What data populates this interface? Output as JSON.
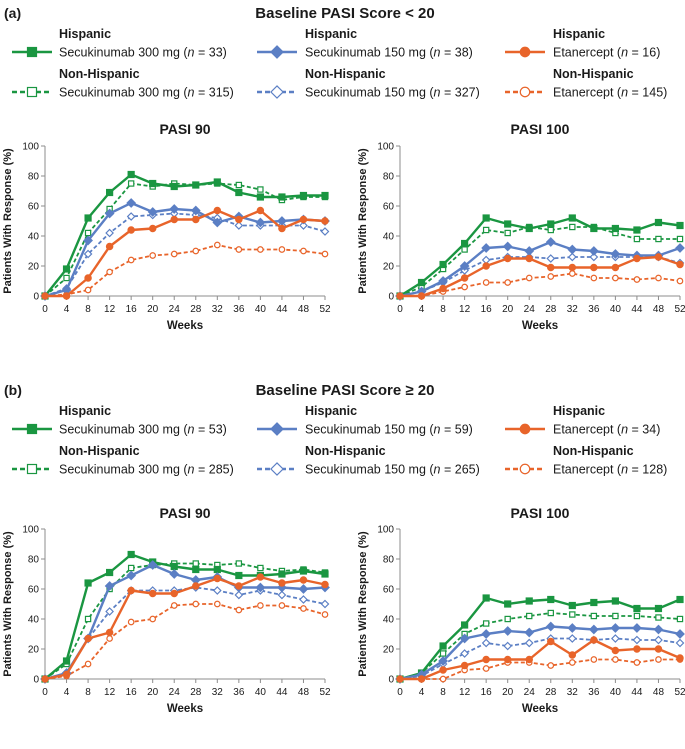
{
  "colors": {
    "secukinumab_300": "#1a9641",
    "secukinumab_150": "#5b7fc4",
    "etanercept": "#e8642a",
    "axis": "#8c8c8c",
    "text": "#1a1a1a"
  },
  "panels": [
    {
      "label": "(a)",
      "title": "Baseline PASI Score < 20",
      "legend": [
        {
          "group": "Hispanic",
          "drug": "Secukinumab 300 mg",
          "n": "33",
          "series": "secukinumab_300",
          "style": "solid",
          "marker": "square"
        },
        {
          "group": "Hispanic",
          "drug": "Secukinumab 150 mg",
          "n": "38",
          "series": "secukinumab_150",
          "style": "solid",
          "marker": "diamond"
        },
        {
          "group": "Hispanic",
          "drug": "Etanercept",
          "n": "16",
          "series": "etanercept",
          "style": "solid",
          "marker": "circle"
        },
        {
          "group": "Non-Hispanic",
          "drug": "Secukinumab 300 mg",
          "n": "315",
          "series": "secukinumab_300",
          "style": "dashed",
          "marker": "square"
        },
        {
          "group": "Non-Hispanic",
          "drug": "Secukinumab 150 mg",
          "n": "327",
          "series": "secukinumab_150",
          "style": "dashed",
          "marker": "diamond"
        },
        {
          "group": "Non-Hispanic",
          "drug": "Etanercept",
          "n": "145",
          "series": "etanercept",
          "style": "dashed",
          "marker": "circle"
        }
      ]
    },
    {
      "label": "(b)",
      "title": "Baseline PASI Score ≥ 20",
      "legend": [
        {
          "group": "Hispanic",
          "drug": "Secukinumab 300 mg",
          "n": "53",
          "series": "secukinumab_300",
          "style": "solid",
          "marker": "square"
        },
        {
          "group": "Hispanic",
          "drug": "Secukinumab 150 mg",
          "n": "59",
          "series": "secukinumab_150",
          "style": "solid",
          "marker": "diamond"
        },
        {
          "group": "Hispanic",
          "drug": "Etanercept",
          "n": "34",
          "series": "etanercept",
          "style": "solid",
          "marker": "circle"
        },
        {
          "group": "Non-Hispanic",
          "drug": "Secukinumab 300 mg",
          "n": "285",
          "series": "secukinumab_300",
          "style": "dashed",
          "marker": "square"
        },
        {
          "group": "Non-Hispanic",
          "drug": "Secukinumab 150 mg",
          "n": "265",
          "series": "secukinumab_150",
          "style": "dashed",
          "marker": "diamond"
        },
        {
          "group": "Non-Hispanic",
          "drug": "Etanercept",
          "n": "128",
          "series": "etanercept",
          "style": "dashed",
          "marker": "circle"
        }
      ]
    }
  ],
  "chart_data": [
    {
      "id": "a-pasi90",
      "type": "line",
      "title": "PASI 90",
      "xlabel": "Weeks",
      "ylabel": "Patients With Response (%)",
      "x": [
        0,
        4,
        8,
        12,
        16,
        20,
        24,
        28,
        32,
        36,
        40,
        44,
        48,
        52
      ],
      "ylim": [
        0,
        100
      ],
      "yticks": [
        0,
        20,
        40,
        60,
        80,
        100
      ],
      "series": [
        {
          "name": "Hispanic Secukinumab 300 mg",
          "key": "secukinumab_300",
          "style": "solid",
          "marker": "square",
          "values": [
            0,
            18,
            52,
            69,
            81,
            75,
            73,
            74,
            76,
            69,
            66,
            66,
            67,
            67
          ]
        },
        {
          "name": "Non-Hispanic Secukinumab 300 mg",
          "key": "secukinumab_300",
          "style": "dashed",
          "marker": "square",
          "values": [
            0,
            12,
            42,
            58,
            75,
            73,
            75,
            74,
            75,
            74,
            71,
            64,
            66,
            66
          ]
        },
        {
          "name": "Hispanic Secukinumab 150 mg",
          "key": "secukinumab_150",
          "style": "solid",
          "marker": "diamond",
          "values": [
            0,
            4,
            37,
            55,
            62,
            56,
            58,
            57,
            49,
            53,
            49,
            50,
            51,
            50
          ]
        },
        {
          "name": "Non-Hispanic Secukinumab 150 mg",
          "key": "secukinumab_150",
          "style": "dashed",
          "marker": "diamond",
          "values": [
            0,
            5,
            28,
            42,
            53,
            54,
            55,
            54,
            52,
            47,
            47,
            47,
            47,
            43
          ]
        },
        {
          "name": "Hispanic Etanercept",
          "key": "etanercept",
          "style": "solid",
          "marker": "circle",
          "values": [
            0,
            0,
            12,
            33,
            44,
            45,
            51,
            51,
            57,
            51,
            57,
            45,
            51,
            50
          ]
        },
        {
          "name": "Non-Hispanic Etanercept",
          "key": "etanercept",
          "style": "dashed",
          "marker": "circle",
          "values": [
            0,
            1,
            4,
            16,
            24,
            27,
            28,
            30,
            34,
            31,
            31,
            31,
            30,
            28
          ]
        }
      ]
    },
    {
      "id": "a-pasi100",
      "type": "line",
      "title": "PASI 100",
      "xlabel": "Weeks",
      "ylabel": "Patients With Response (%)",
      "x": [
        0,
        4,
        8,
        12,
        16,
        20,
        24,
        28,
        32,
        36,
        40,
        44,
        48,
        52
      ],
      "ylim": [
        0,
        100
      ],
      "yticks": [
        0,
        20,
        40,
        60,
        80,
        100
      ],
      "series": [
        {
          "name": "Hispanic Secukinumab 300 mg",
          "key": "secukinumab_300",
          "style": "solid",
          "marker": "square",
          "values": [
            0,
            9,
            21,
            35,
            52,
            48,
            45,
            48,
            52,
            45,
            45,
            44,
            49,
            47
          ]
        },
        {
          "name": "Non-Hispanic Secukinumab 300 mg",
          "key": "secukinumab_300",
          "style": "dashed",
          "marker": "square",
          "values": [
            0,
            6,
            18,
            31,
            44,
            42,
            46,
            44,
            46,
            46,
            42,
            38,
            38,
            38
          ]
        },
        {
          "name": "Hispanic Secukinumab 150 mg",
          "key": "secukinumab_150",
          "style": "solid",
          "marker": "diamond",
          "values": [
            0,
            3,
            10,
            20,
            32,
            33,
            30,
            36,
            31,
            30,
            28,
            27,
            27,
            32
          ]
        },
        {
          "name": "Non-Hispanic Secukinumab 150 mg",
          "key": "secukinumab_150",
          "style": "dashed",
          "marker": "diamond",
          "values": [
            0,
            3,
            9,
            17,
            24,
            26,
            26,
            25,
            26,
            26,
            26,
            26,
            26,
            22
          ]
        },
        {
          "name": "Hispanic Etanercept",
          "key": "etanercept",
          "style": "solid",
          "marker": "circle",
          "values": [
            0,
            0,
            5,
            12,
            20,
            25,
            25,
            19,
            19,
            19,
            19,
            25,
            26,
            21
          ]
        },
        {
          "name": "Non-Hispanic Etanercept",
          "key": "etanercept",
          "style": "dashed",
          "marker": "circle",
          "values": [
            0,
            0,
            3,
            6,
            9,
            9,
            12,
            13,
            15,
            12,
            12,
            11,
            12,
            10
          ]
        }
      ]
    },
    {
      "id": "b-pasi90",
      "type": "line",
      "title": "PASI 90",
      "xlabel": "Weeks",
      "ylabel": "Patients With Response (%)",
      "x": [
        0,
        4,
        8,
        12,
        16,
        20,
        24,
        28,
        32,
        36,
        40,
        44,
        48,
        52
      ],
      "ylim": [
        0,
        100
      ],
      "yticks": [
        0,
        20,
        40,
        60,
        80,
        100
      ],
      "series": [
        {
          "name": "Hispanic Secukinumab 300 mg",
          "key": "secukinumab_300",
          "style": "solid",
          "marker": "square",
          "values": [
            0,
            12,
            64,
            71,
            83,
            78,
            75,
            73,
            73,
            69,
            69,
            70,
            72,
            70
          ]
        },
        {
          "name": "Non-Hispanic Secukinumab 300 mg",
          "key": "secukinumab_300",
          "style": "dashed",
          "marker": "square",
          "values": [
            0,
            10,
            40,
            60,
            74,
            76,
            77,
            77,
            76,
            77,
            74,
            72,
            73,
            71
          ]
        },
        {
          "name": "Hispanic Secukinumab 150 mg",
          "key": "secukinumab_150",
          "style": "solid",
          "marker": "diamond",
          "values": [
            0,
            4,
            27,
            62,
            69,
            76,
            70,
            66,
            68,
            61,
            61,
            61,
            60,
            61
          ]
        },
        {
          "name": "Non-Hispanic Secukinumab 150 mg",
          "key": "secukinumab_150",
          "style": "dashed",
          "marker": "diamond",
          "values": [
            0,
            3,
            27,
            45,
            59,
            59,
            59,
            61,
            59,
            56,
            59,
            56,
            53,
            50
          ]
        },
        {
          "name": "Hispanic Etanercept",
          "key": "etanercept",
          "style": "solid",
          "marker": "circle",
          "values": [
            0,
            3,
            27,
            31,
            59,
            57,
            57,
            62,
            67,
            62,
            68,
            64,
            66,
            63
          ]
        },
        {
          "name": "Non-Hispanic Etanercept",
          "key": "etanercept",
          "style": "dashed",
          "marker": "circle",
          "values": [
            0,
            2,
            10,
            27,
            38,
            40,
            49,
            50,
            50,
            46,
            49,
            49,
            47,
            43
          ]
        }
      ]
    },
    {
      "id": "b-pasi100",
      "type": "line",
      "title": "PASI 100",
      "xlabel": "Weeks",
      "ylabel": "Patients With Response (%)",
      "x": [
        0,
        4,
        8,
        12,
        16,
        20,
        24,
        28,
        32,
        36,
        40,
        44,
        48,
        52
      ],
      "ylim": [
        0,
        100
      ],
      "yticks": [
        0,
        20,
        40,
        60,
        80,
        100
      ],
      "series": [
        {
          "name": "Hispanic Secukinumab 300 mg",
          "key": "secukinumab_300",
          "style": "solid",
          "marker": "square",
          "values": [
            0,
            4,
            22,
            36,
            54,
            50,
            52,
            53,
            49,
            51,
            52,
            47,
            47,
            53
          ]
        },
        {
          "name": "Non-Hispanic Secukinumab 300 mg",
          "key": "secukinumab_300",
          "style": "dashed",
          "marker": "square",
          "values": [
            0,
            4,
            17,
            30,
            37,
            40,
            42,
            44,
            43,
            42,
            42,
            42,
            41,
            40
          ]
        },
        {
          "name": "Hispanic Secukinumab 150 mg",
          "key": "secukinumab_150",
          "style": "solid",
          "marker": "diamond",
          "values": [
            0,
            3,
            12,
            27,
            30,
            32,
            31,
            35,
            34,
            33,
            34,
            34,
            33,
            30
          ]
        },
        {
          "name": "Non-Hispanic Secukinumab 150 mg",
          "key": "secukinumab_150",
          "style": "dashed",
          "marker": "diamond",
          "values": [
            0,
            2,
            10,
            17,
            24,
            22,
            24,
            27,
            27,
            26,
            27,
            26,
            26,
            24
          ]
        },
        {
          "name": "Hispanic Etanercept",
          "key": "etanercept",
          "style": "solid",
          "marker": "circle",
          "values": [
            0,
            0,
            6,
            9,
            13,
            13,
            13,
            25,
            16,
            26,
            19,
            20,
            20,
            14
          ]
        },
        {
          "name": "Non-Hispanic Etanercept",
          "key": "etanercept",
          "style": "dashed",
          "marker": "circle",
          "values": [
            0,
            0,
            0,
            6,
            7,
            11,
            11,
            9,
            11,
            13,
            13,
            11,
            13,
            13
          ]
        }
      ]
    }
  ]
}
